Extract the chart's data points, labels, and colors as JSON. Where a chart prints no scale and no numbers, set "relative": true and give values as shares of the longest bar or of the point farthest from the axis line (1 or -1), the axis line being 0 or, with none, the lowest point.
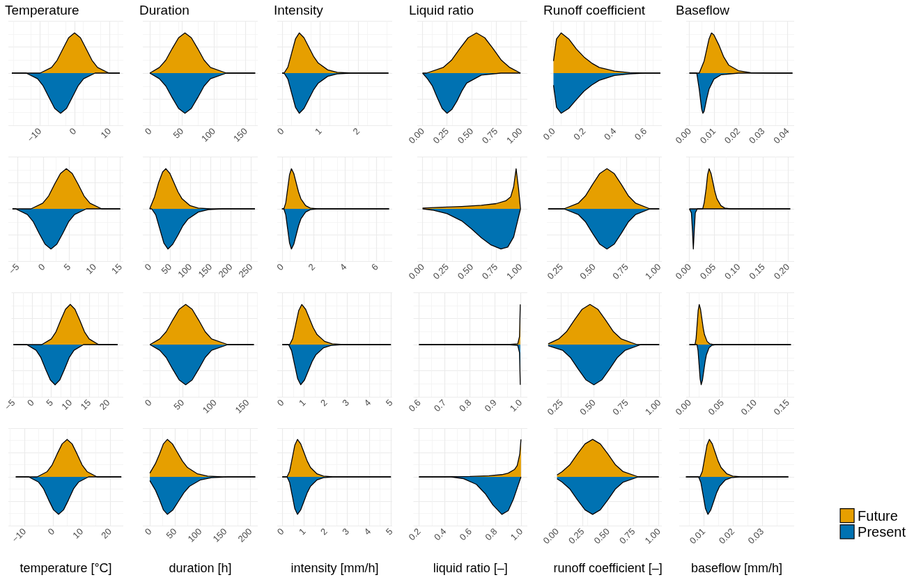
{
  "chart_data": [
    {
      "type": "area",
      "title": "Temperature",
      "relative": true,
      "grid": true,
      "xlim": [
        -19,
        14
      ],
      "xticks": [
        {
          "value": -10,
          "label": "−10"
        },
        0,
        10
      ],
      "series": [
        {
          "color": "#e69f00",
          "x": [
            -18,
            -9.9,
            -6.6,
            -5,
            -3.3,
            -1.7,
            0,
            1.7,
            3.3,
            5,
            6.6,
            9.9,
            13
          ],
          "values": [
            0,
            0,
            0.14,
            0.32,
            0.61,
            0.88,
            1,
            0.88,
            0.61,
            0.32,
            0.14,
            0,
            0
          ]
        },
        {
          "color": "#0072b2",
          "x": [
            -18,
            -13.9,
            -10.6,
            -9,
            -7.3,
            -5.7,
            -4,
            -2.3,
            -0.7,
            1,
            2.6,
            5.9,
            13
          ],
          "values": [
            0,
            0,
            -0.14,
            -0.32,
            -0.61,
            -0.88,
            -1,
            -0.88,
            -0.61,
            -0.32,
            -0.14,
            0,
            0
          ]
        }
      ]
    },
    {
      "type": "area",
      "title": "Duration",
      "relative": true,
      "grid": true,
      "xlim": [
        -11,
        169
      ],
      "xticks": [
        0,
        50,
        100,
        150
      ],
      "series": [
        {
          "color": "#e69f00",
          "x": [
            0,
            15,
            25,
            35,
            45,
            55,
            65,
            75,
            85,
            95,
            120,
            165
          ],
          "values": [
            0,
            0.14,
            0.32,
            0.61,
            0.88,
            1,
            0.88,
            0.61,
            0.32,
            0.14,
            0,
            0
          ]
        },
        {
          "color": "#0072b2",
          "x": [
            0,
            15,
            25,
            35,
            45,
            55,
            65,
            75,
            85,
            95,
            120,
            165
          ],
          "values": [
            0,
            -0.14,
            -0.32,
            -0.61,
            -0.88,
            -1,
            -0.88,
            -0.61,
            -0.32,
            -0.14,
            0,
            0
          ]
        }
      ]
    },
    {
      "type": "area",
      "title": "Intensity",
      "relative": true,
      "grid": true,
      "xlim": [
        -0.13,
        2.9
      ],
      "xticks": [
        0,
        1,
        2
      ],
      "series": [
        {
          "color": "#e69f00",
          "x": [
            0,
            0.05,
            0.15,
            0.25,
            0.35,
            0.45,
            0.575,
            0.7,
            0.825,
            0.95,
            1.2,
            1.45,
            1.825,
            2.8
          ],
          "values": [
            0,
            0,
            0.15,
            0.5,
            0.85,
            1,
            0.88,
            0.65,
            0.42,
            0.25,
            0.08,
            0.02,
            0,
            0
          ]
        },
        {
          "color": "#0072b2",
          "x": [
            0,
            0.05,
            0.15,
            0.25,
            0.35,
            0.45,
            0.575,
            0.7,
            0.825,
            0.95,
            1.2,
            1.45,
            1.825,
            2.8
          ],
          "values": [
            0,
            0,
            -0.15,
            -0.5,
            -0.85,
            -1,
            -0.88,
            -0.65,
            -0.42,
            -0.25,
            -0.08,
            -0.02,
            0,
            0
          ]
        }
      ]
    },
    {
      "type": "area",
      "title": "Liquid ratio",
      "relative": true,
      "grid": true,
      "xlim": [
        -0.055,
        1.07
      ],
      "xticks": [
        {
          "value": 0,
          "label": "0.00"
        },
        0.25,
        {
          "value": 0.5,
          "label": "0.50"
        },
        0.75,
        {
          "value": 1,
          "label": "1.00"
        }
      ],
      "series": [
        {
          "color": "#e69f00",
          "x": [
            0,
            0.04,
            0.21,
            0.295,
            0.38,
            0.465,
            0.55,
            0.635,
            0.72,
            0.805,
            0.89,
            1.0
          ],
          "values": [
            0,
            0,
            0.14,
            0.32,
            0.61,
            0.88,
            1,
            0.88,
            0.61,
            0.32,
            0.14,
            0
          ]
        },
        {
          "color": "#0072b2",
          "x": [
            0,
            0.05,
            0.1,
            0.15,
            0.2,
            0.25,
            0.3,
            0.35,
            0.4,
            0.45,
            0.6,
            0.8,
            1.0
          ],
          "values": [
            0,
            -0.14,
            -0.32,
            -0.61,
            -0.88,
            -1,
            -0.9,
            -0.7,
            -0.45,
            -0.25,
            -0.05,
            0,
            0
          ]
        }
      ]
    },
    {
      "type": "area",
      "title": "Runoff coefficient",
      "relative": true,
      "grid": true,
      "xlim": [
        -0.02,
        0.71
      ],
      "xticks": [
        {
          "value": 0,
          "label": "0.0"
        },
        0.2,
        0.4,
        0.6
      ],
      "series": [
        {
          "color": "#e69f00",
          "x": [
            0,
            0.02,
            0.05,
            0.1,
            0.15,
            0.2,
            0.25,
            0.3,
            0.4,
            0.5,
            0.6,
            0.7
          ],
          "values": [
            0.3,
            0.85,
            1,
            0.85,
            0.6,
            0.4,
            0.25,
            0.14,
            0.05,
            0.01,
            0,
            0
          ]
        },
        {
          "color": "#0072b2",
          "x": [
            0,
            0.02,
            0.05,
            0.1,
            0.15,
            0.2,
            0.25,
            0.3,
            0.4,
            0.5,
            0.6,
            0.7
          ],
          "values": [
            -0.3,
            -0.85,
            -1,
            -0.88,
            -0.66,
            -0.45,
            -0.3,
            -0.18,
            -0.06,
            -0.02,
            0,
            0
          ]
        }
      ]
    },
    {
      "type": "area",
      "title": "Baseflow",
      "relative": true,
      "grid": true,
      "xlim": [
        -0.0013,
        0.0427
      ],
      "xticks": [
        {
          "value": 0,
          "label": "0.00"
        },
        0.01,
        0.02,
        0.03,
        0.04
      ],
      "series": [
        {
          "color": "#e69f00",
          "x": [
            0,
            0.004,
            0.006,
            0.008,
            0.009,
            0.01,
            0.012,
            0.014,
            0.016,
            0.02,
            0.025,
            0.035,
            0.042
          ],
          "values": [
            0,
            0,
            0.3,
            0.85,
            1,
            0.95,
            0.7,
            0.4,
            0.2,
            0.06,
            0.01,
            0,
            0
          ]
        },
        {
          "color": "#0072b2",
          "x": [
            0,
            0.003,
            0.004,
            0.005,
            0.0055,
            0.006,
            0.007,
            0.008,
            0.01,
            0.013,
            0.02,
            0.042
          ],
          "values": [
            0,
            0,
            -0.4,
            -0.9,
            -1,
            -0.95,
            -0.65,
            -0.4,
            -0.15,
            -0.04,
            0,
            0
          ]
        }
      ]
    },
    {
      "type": "area",
      "relative": true,
      "grid": true,
      "xlim": [
        -6.8,
        15.6
      ],
      "xticks": [
        {
          "value": -5,
          "label": "−5"
        },
        0,
        5,
        10,
        15
      ],
      "series": [
        {
          "color": "#e69f00",
          "x": [
            -6,
            -2.4,
            -0.1,
            1.05,
            2.2,
            3.35,
            4.5,
            5.65,
            6.8,
            7.95,
            9.1,
            11.4,
            15
          ],
          "values": [
            0,
            0,
            0.14,
            0.32,
            0.61,
            0.88,
            1,
            0.88,
            0.61,
            0.32,
            0.14,
            0,
            0
          ]
        },
        {
          "color": "#0072b2",
          "x": [
            -6,
            -5.4,
            -3.1,
            -1.95,
            -0.8,
            0.35,
            1.5,
            2.65,
            3.8,
            4.95,
            6.1,
            8.4,
            15
          ],
          "values": [
            0,
            0,
            -0.14,
            -0.32,
            -0.61,
            -0.88,
            -1,
            -0.88,
            -0.61,
            -0.32,
            -0.14,
            0,
            0
          ]
        }
      ]
    },
    {
      "type": "area",
      "relative": true,
      "grid": true,
      "xlim": [
        -17,
        267
      ],
      "xticks": [
        0,
        50,
        100,
        150,
        200,
        250
      ],
      "series": [
        {
          "color": "#e69f00",
          "x": [
            0,
            12,
            22,
            32,
            40,
            50,
            60,
            70,
            80,
            100,
            120,
            150,
            260
          ],
          "values": [
            0,
            0.3,
            0.65,
            0.92,
            1,
            0.88,
            0.65,
            0.42,
            0.25,
            0.08,
            0.02,
            0,
            0
          ]
        },
        {
          "color": "#0072b2",
          "x": [
            0,
            5,
            15,
            25,
            35,
            45,
            57,
            70,
            82,
            95,
            120,
            145,
            180,
            260
          ],
          "values": [
            0,
            0,
            -0.15,
            -0.5,
            -0.85,
            -1,
            -0.88,
            -0.65,
            -0.42,
            -0.25,
            -0.08,
            -0.02,
            0,
            0
          ]
        }
      ]
    },
    {
      "type": "area",
      "relative": true,
      "grid": true,
      "xlim": [
        -0.3,
        7.0
      ],
      "xticks": [
        0,
        2,
        4,
        6
      ],
      "series": [
        {
          "color": "#e69f00",
          "x": [
            0,
            0.12,
            0.24,
            0.36,
            0.48,
            0.6,
            0.75,
            0.9,
            1.05,
            1.2,
            1.5,
            1.8,
            2.25,
            6.8
          ],
          "values": [
            0,
            0,
            0.15,
            0.5,
            0.85,
            1,
            0.88,
            0.65,
            0.42,
            0.25,
            0.08,
            0.02,
            0,
            0
          ]
        },
        {
          "color": "#0072b2",
          "x": [
            0,
            0.12,
            0.24,
            0.36,
            0.48,
            0.6,
            0.75,
            0.9,
            1.05,
            1.2,
            1.5,
            1.8,
            2.25,
            6.8
          ],
          "values": [
            0,
            0,
            -0.15,
            -0.5,
            -0.85,
            -1,
            -0.88,
            -0.65,
            -0.42,
            -0.25,
            -0.08,
            -0.02,
            0,
            0
          ]
        }
      ]
    },
    {
      "type": "area",
      "relative": true,
      "grid": true,
      "xlim": [
        -0.055,
        1.07
      ],
      "xticks": [
        {
          "value": 0,
          "label": "0.00"
        },
        0.25,
        {
          "value": 0.5,
          "label": "0.50"
        },
        0.75,
        {
          "value": 1,
          "label": "1.00"
        }
      ],
      "series": [
        {
          "color": "#e69f00",
          "x": [
            0,
            0.2,
            0.4,
            0.6,
            0.75,
            0.85,
            0.9,
            0.93,
            0.955,
            0.98,
            1.0
          ],
          "values": [
            0.02,
            0.04,
            0.06,
            0.09,
            0.13,
            0.2,
            0.3,
            0.55,
            1,
            0.5,
            0
          ]
        },
        {
          "color": "#0072b2",
          "x": [
            0,
            0.1,
            0.25,
            0.4,
            0.5,
            0.6,
            0.7,
            0.8,
            0.87,
            0.93,
            0.97,
            1.0
          ],
          "values": [
            0,
            -0.03,
            -0.12,
            -0.3,
            -0.5,
            -0.72,
            -0.9,
            -1,
            -0.95,
            -0.7,
            -0.3,
            0
          ]
        }
      ]
    },
    {
      "type": "area",
      "relative": true,
      "grid": true,
      "xlim": [
        0.14,
        1.02
      ],
      "xticks": [
        0.25,
        {
          "value": 0.5,
          "label": "0.50"
        },
        0.75,
        {
          "value": 1,
          "label": "1.00"
        }
      ],
      "series": [
        {
          "color": "#e69f00",
          "x": [
            0.15,
            0.27,
            0.38,
            0.435,
            0.49,
            0.545,
            0.6,
            0.655,
            0.71,
            0.765,
            0.82,
            0.93,
            1.0
          ],
          "values": [
            0,
            0,
            0.14,
            0.32,
            0.61,
            0.88,
            1,
            0.88,
            0.61,
            0.32,
            0.14,
            0,
            0
          ]
        },
        {
          "color": "#0072b2",
          "x": [
            0.15,
            0.27,
            0.38,
            0.435,
            0.49,
            0.545,
            0.6,
            0.655,
            0.71,
            0.765,
            0.82,
            0.93,
            1.0
          ],
          "values": [
            0,
            0,
            -0.14,
            -0.32,
            -0.61,
            -0.88,
            -1,
            -0.88,
            -0.61,
            -0.32,
            -0.14,
            0,
            0
          ]
        }
      ]
    },
    {
      "type": "area",
      "relative": true,
      "grid": true,
      "xlim": [
        -0.0067,
        0.213
      ],
      "xticks": [
        {
          "value": 0,
          "label": "0.00"
        },
        0.05,
        {
          "value": 0.1,
          "label": "0.10"
        },
        0.15,
        {
          "value": 0.2,
          "label": "0.20"
        }
      ],
      "series": [
        {
          "color": "#e69f00",
          "x": [
            0,
            0.027,
            0.03,
            0.034,
            0.037,
            0.04,
            0.044,
            0.048,
            0.052,
            0.056,
            0.064,
            0.072,
            0.084,
            0.205
          ],
          "values": [
            0,
            0,
            0.15,
            0.5,
            0.85,
            1,
            0.88,
            0.65,
            0.42,
            0.25,
            0.08,
            0.02,
            0,
            0
          ]
        },
        {
          "color": "#0072b2",
          "x": [
            0,
            0.004,
            0.006,
            0.008,
            0.01,
            0.012,
            0.016,
            0.205
          ],
          "values": [
            0,
            -0.1,
            -0.5,
            -1,
            -0.5,
            -0.1,
            0,
            0
          ]
        }
      ]
    },
    {
      "type": "area",
      "relative": true,
      "grid": true,
      "xlim": [
        -5.5,
        24
      ],
      "xticks": [
        {
          "value": -5,
          "label": "−5"
        },
        0,
        5,
        10,
        15,
        20
      ],
      "series": [
        {
          "color": "#e69f00",
          "x": [
            -5,
            2.5,
            5,
            6.25,
            7.5,
            8.75,
            10,
            11.25,
            12.5,
            13.75,
            15,
            17.5,
            22.5
          ],
          "values": [
            0,
            0,
            0.14,
            0.32,
            0.61,
            0.88,
            1,
            0.88,
            0.61,
            0.32,
            0.14,
            0,
            0
          ]
        },
        {
          "color": "#0072b2",
          "x": [
            -5,
            -1.5,
            1,
            2.25,
            3.5,
            4.75,
            6,
            7.25,
            8.5,
            9.75,
            11,
            13.5,
            22.5
          ],
          "values": [
            0,
            0,
            -0.14,
            -0.32,
            -0.61,
            -0.88,
            -1,
            -0.88,
            -0.61,
            -0.32,
            -0.14,
            0,
            0
          ]
        }
      ]
    },
    {
      "type": "area",
      "relative": true,
      "grid": true,
      "xlim": [
        -11,
        166
      ],
      "xticks": [
        0,
        50,
        100,
        150
      ],
      "series": [
        {
          "color": "#e69f00",
          "x": [
            0,
            15,
            25,
            35,
            45,
            55,
            65,
            75,
            85,
            95,
            120,
            160
          ],
          "values": [
            0,
            0.14,
            0.32,
            0.61,
            0.88,
            1,
            0.88,
            0.61,
            0.32,
            0.14,
            0,
            0
          ]
        },
        {
          "color": "#0072b2",
          "x": [
            0,
            15,
            25,
            35,
            45,
            55,
            65,
            75,
            85,
            95,
            120,
            160
          ],
          "values": [
            0,
            -0.14,
            -0.32,
            -0.61,
            -0.88,
            -1,
            -0.88,
            -0.61,
            -0.32,
            -0.14,
            0,
            0
          ]
        }
      ]
    },
    {
      "type": "area",
      "relative": true,
      "grid": true,
      "xlim": [
        -0.23,
        5.06
      ],
      "xticks": [
        0,
        1,
        2,
        3,
        4,
        5
      ],
      "series": [
        {
          "color": "#e69f00",
          "x": [
            0,
            0.34,
            0.48,
            0.62,
            0.76,
            0.9,
            1.075,
            1.25,
            1.425,
            1.6,
            1.95,
            2.3,
            2.825,
            5
          ],
          "values": [
            0,
            0,
            0.15,
            0.5,
            0.85,
            1,
            0.88,
            0.65,
            0.42,
            0.25,
            0.08,
            0.02,
            0,
            0
          ]
        },
        {
          "color": "#0072b2",
          "x": [
            0,
            0.29,
            0.43,
            0.57,
            0.71,
            0.85,
            1.025,
            1.2,
            1.375,
            1.55,
            1.9,
            2.25,
            2.775,
            5
          ],
          "values": [
            0,
            0,
            -0.15,
            -0.5,
            -0.85,
            -1,
            -0.88,
            -0.65,
            -0.42,
            -0.25,
            -0.08,
            -0.02,
            0,
            0
          ]
        }
      ]
    },
    {
      "type": "area",
      "relative": true,
      "grid": true,
      "xlim": [
        0.578,
        1.028
      ],
      "xticks": [
        0.6,
        0.7,
        0.8,
        0.9,
        {
          "value": 1,
          "label": "1.0"
        }
      ],
      "series": [
        {
          "color": "#e69f00",
          "x": [
            0.6,
            0.95,
            0.99,
            0.997,
            1.0
          ],
          "values": [
            0,
            0,
            0.02,
            0.2,
            1
          ]
        },
        {
          "color": "#0072b2",
          "x": [
            0.6,
            0.95,
            0.99,
            0.997,
            1.0
          ],
          "values": [
            0,
            0,
            -0.02,
            -0.2,
            -1
          ]
        }
      ]
    },
    {
      "type": "area",
      "relative": true,
      "grid": true,
      "xlim": [
        0.14,
        1.02
      ],
      "xticks": [
        0.25,
        {
          "value": 0.5,
          "label": "0.50"
        },
        0.75,
        {
          "value": 1,
          "label": "1.00"
        }
      ],
      "series": [
        {
          "color": "#e69f00",
          "x": [
            0.15,
            0.23,
            0.29,
            0.35,
            0.41,
            0.47,
            0.53,
            0.59,
            0.65,
            0.71,
            0.83,
            1.0
          ],
          "values": [
            0.02,
            0.14,
            0.32,
            0.61,
            0.88,
            1,
            0.88,
            0.61,
            0.32,
            0.14,
            0,
            0
          ]
        },
        {
          "color": "#0072b2",
          "x": [
            0.15,
            0.26,
            0.32,
            0.38,
            0.44,
            0.5,
            0.56,
            0.62,
            0.68,
            0.74,
            0.86,
            1.0
          ],
          "values": [
            -0.03,
            -0.14,
            -0.32,
            -0.61,
            -0.88,
            -1,
            -0.88,
            -0.61,
            -0.32,
            -0.14,
            0,
            0
          ]
        }
      ]
    },
    {
      "type": "area",
      "relative": true,
      "grid": true,
      "xlim": [
        -0.005,
        0.16
      ],
      "xticks": [
        {
          "value": 0,
          "label": "0.00"
        },
        0.05,
        {
          "value": 0.1,
          "label": "0.10"
        },
        0.15
      ],
      "series": [
        {
          "color": "#e69f00",
          "x": [
            0,
            0.0086,
            0.0102,
            0.0118,
            0.0134,
            0.015,
            0.017,
            0.019,
            0.021,
            0.023,
            0.027,
            0.031,
            0.037,
            0.155
          ],
          "values": [
            0,
            0,
            0.15,
            0.5,
            0.85,
            1,
            0.88,
            0.65,
            0.42,
            0.25,
            0.08,
            0.02,
            0,
            0
          ]
        },
        {
          "color": "#0072b2",
          "x": [
            0,
            0.0116,
            0.0132,
            0.0148,
            0.0164,
            0.018,
            0.02,
            0.022,
            0.024,
            0.026,
            0.03,
            0.034,
            0.04,
            0.155
          ],
          "values": [
            0,
            0,
            -0.15,
            -0.5,
            -0.85,
            -1,
            -0.88,
            -0.65,
            -0.42,
            -0.25,
            -0.08,
            -0.02,
            0,
            0
          ]
        }
      ]
    },
    {
      "type": "area",
      "xlabel": "temperature [°C]",
      "relative": true,
      "grid": true,
      "xlim": [
        -15.6,
        24.7
      ],
      "xticks": [
        {
          "value": -10,
          "label": "−10"
        },
        0,
        10,
        20
      ],
      "series": [
        {
          "color": "#e69f00",
          "x": [
            -13,
            -5.5,
            -2,
            -0.25,
            1.5,
            3.25,
            5,
            6.75,
            8.5,
            10.25,
            12,
            15.5,
            24
          ],
          "values": [
            0,
            0,
            0.14,
            0.32,
            0.61,
            0.88,
            1,
            0.88,
            0.61,
            0.32,
            0.14,
            0,
            0
          ]
        },
        {
          "color": "#0072b2",
          "x": [
            -13,
            -8.5,
            -5,
            -3.25,
            -1.5,
            0.25,
            2,
            3.75,
            5.5,
            7.25,
            9,
            12.5,
            24
          ],
          "values": [
            0,
            0,
            -0.14,
            -0.32,
            -0.61,
            -0.88,
            -1,
            -0.88,
            -0.61,
            -0.32,
            -0.14,
            0,
            0
          ]
        }
      ]
    },
    {
      "type": "area",
      "xlabel": "duration [h]",
      "relative": true,
      "grid": true,
      "xlim": [
        -14,
        215
      ],
      "xticks": [
        0,
        50,
        100,
        150,
        200
      ],
      "series": [
        {
          "color": "#e69f00",
          "x": [
            0,
            11,
            19,
            27,
            35,
            45,
            55,
            65,
            75,
            95,
            115,
            145,
            210
          ],
          "values": [
            0.1,
            0.35,
            0.6,
            0.88,
            1,
            0.88,
            0.65,
            0.42,
            0.25,
            0.08,
            0.02,
            0,
            0
          ]
        },
        {
          "color": "#0072b2",
          "x": [
            0,
            11,
            19,
            27,
            35,
            46,
            57,
            68,
            79,
            101,
            123,
            156,
            210
          ],
          "values": [
            -0.1,
            -0.35,
            -0.6,
            -0.88,
            -1,
            -0.88,
            -0.65,
            -0.42,
            -0.25,
            -0.08,
            -0.02,
            0,
            0
          ]
        }
      ]
    },
    {
      "type": "area",
      "xlabel": "intensity [mm/h]",
      "relative": true,
      "grid": true,
      "xlim": [
        -0.23,
        5.06
      ],
      "xticks": [
        0,
        1,
        2,
        3,
        4,
        5
      ],
      "series": [
        {
          "color": "#e69f00",
          "x": [
            0,
            0.22,
            0.34,
            0.46,
            0.58,
            0.7,
            0.85,
            1.0,
            1.15,
            1.3,
            1.6,
            1.9,
            2.35,
            5
          ],
          "values": [
            0,
            0,
            0.15,
            0.5,
            0.85,
            1,
            0.88,
            0.65,
            0.42,
            0.25,
            0.08,
            0.02,
            0,
            0
          ]
        },
        {
          "color": "#0072b2",
          "x": [
            0,
            0.22,
            0.34,
            0.46,
            0.58,
            0.7,
            0.85,
            1.0,
            1.15,
            1.3,
            1.6,
            1.9,
            2.35,
            5
          ],
          "values": [
            0,
            0,
            -0.15,
            -0.5,
            -0.85,
            -1,
            -0.88,
            -0.65,
            -0.42,
            -0.25,
            -0.08,
            -0.02,
            0,
            0
          ]
        }
      ]
    },
    {
      "type": "area",
      "xlabel": "liquid ratio [–]",
      "relative": true,
      "grid": true,
      "xlim": [
        0.156,
        1.05
      ],
      "xticks": [
        0.2,
        0.4,
        0.6,
        0.8,
        {
          "value": 1,
          "label": "1.0"
        }
      ],
      "series": [
        {
          "color": "#e69f00",
          "x": [
            0.2,
            0.4,
            0.6,
            0.75,
            0.85,
            0.9,
            0.95,
            0.97,
            0.99,
            1.0
          ],
          "values": [
            0,
            0,
            0.01,
            0.03,
            0.06,
            0.1,
            0.2,
            0.3,
            0.6,
            1
          ]
        },
        {
          "color": "#0072b2",
          "x": [
            0.2,
            0.45,
            0.55,
            0.65,
            0.72,
            0.78,
            0.85,
            0.9,
            0.94,
            0.97,
            1.0
          ],
          "values": [
            0,
            0,
            -0.05,
            -0.2,
            -0.45,
            -0.75,
            -1,
            -0.9,
            -0.6,
            -0.3,
            0
          ]
        }
      ]
    },
    {
      "type": "area",
      "xlabel": "runoff coefficient [–]",
      "relative": true,
      "grid": true,
      "xlim": [
        -0.03,
        1.03
      ],
      "xticks": [
        {
          "value": 0,
          "label": "0.00"
        },
        0.25,
        {
          "value": 0.5,
          "label": "0.50"
        },
        0.75,
        {
          "value": 1,
          "label": "1.00"
        }
      ],
      "series": [
        {
          "color": "#e69f00",
          "x": [
            0,
            0.05,
            0.125,
            0.2,
            0.275,
            0.35,
            0.425,
            0.5,
            0.575,
            0.65,
            0.8,
            1.0
          ],
          "values": [
            0.05,
            0.14,
            0.32,
            0.61,
            0.88,
            1,
            0.88,
            0.61,
            0.32,
            0.14,
            0,
            0
          ]
        },
        {
          "color": "#0072b2",
          "x": [
            0,
            0.05,
            0.125,
            0.2,
            0.275,
            0.35,
            0.425,
            0.5,
            0.575,
            0.65,
            0.8,
            1.0
          ],
          "values": [
            -0.05,
            -0.14,
            -0.32,
            -0.61,
            -0.88,
            -1,
            -0.88,
            -0.61,
            -0.32,
            -0.14,
            0,
            0
          ]
        }
      ]
    },
    {
      "type": "area",
      "xlabel": "baseflow [mm/h]",
      "relative": true,
      "grid": true,
      "legend": "right",
      "xlim": [
        0.0017,
        0.041
      ],
      "xticks": [
        0.01,
        0.02,
        0.03
      ],
      "series": [
        {
          "name": "Future",
          "color": "#e69f00",
          "x": [
            0.004,
            0.0088,
            0.0096,
            0.0104,
            0.0112,
            0.012,
            0.013,
            0.014,
            0.015,
            0.016,
            0.018,
            0.02,
            0.023,
            0.039
          ],
          "values": [
            0,
            0,
            0.15,
            0.5,
            0.85,
            1,
            0.88,
            0.65,
            0.42,
            0.25,
            0.08,
            0.02,
            0,
            0
          ]
        },
        {
          "name": "Present",
          "color": "#0072b2",
          "x": [
            0.004,
            0.0083,
            0.0091,
            0.0099,
            0.0107,
            0.0115,
            0.0125,
            0.0135,
            0.0145,
            0.0155,
            0.0175,
            0.0195,
            0.0225,
            0.039
          ],
          "values": [
            0,
            0,
            -0.15,
            -0.5,
            -0.85,
            -1,
            -0.88,
            -0.65,
            -0.42,
            -0.25,
            -0.08,
            -0.02,
            0,
            0
          ]
        }
      ]
    }
  ]
}
